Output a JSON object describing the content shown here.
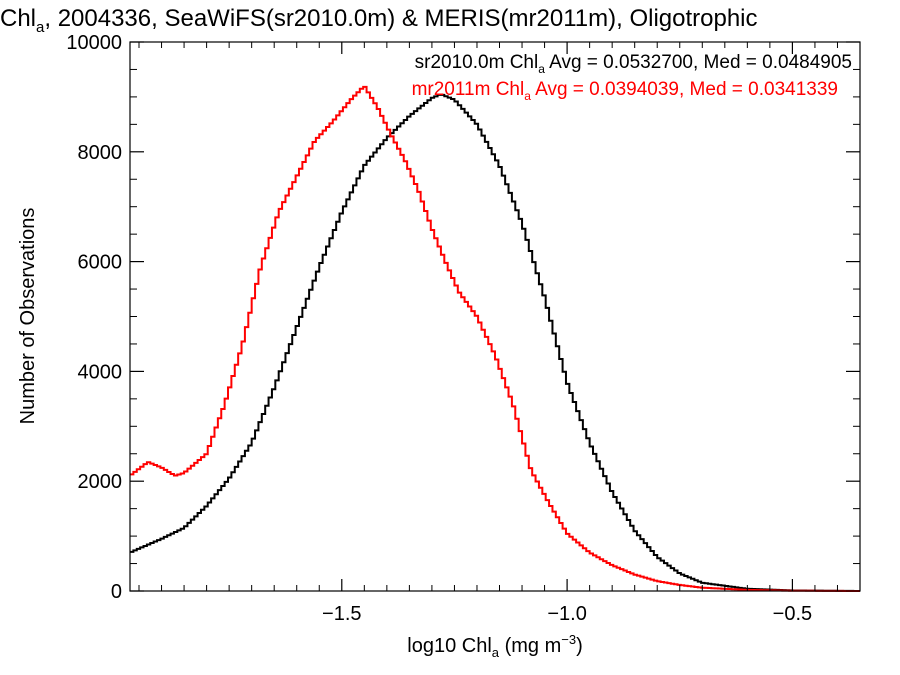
{
  "chart_data": {
    "type": "line",
    "title": {
      "prefix": "Chl",
      "sub": "a",
      "suffix": ", 2004336, SeaWiFS(sr2010.0m) & MERIS(mr2011m), Oligotrophic"
    },
    "xlabel": {
      "prefix": "log10 Chl",
      "sub": "a",
      "middle": " (mg m",
      "sup": "−3",
      "suffix": ")"
    },
    "ylabel": "Number of Observations",
    "xlim": [
      -1.97,
      -0.35
    ],
    "ylim": [
      0,
      10000
    ],
    "x_ticks": [
      -1.5,
      -1.0,
      -0.5
    ],
    "x_tick_labels": [
      "−1.5",
      "−1.0",
      "−0.5"
    ],
    "y_ticks": [
      0,
      2000,
      4000,
      6000,
      8000,
      10000
    ],
    "y_tick_labels": [
      "0",
      "2000",
      "4000",
      "6000",
      "8000",
      "10000"
    ],
    "grid": false,
    "legend_position": "top-right",
    "series": [
      {
        "color": "#000000",
        "legend": {
          "prefix": "sr2010.0m Chl",
          "sub": "a",
          "suffix": " Avg = 0.0532700, Med = 0.0484905"
        },
        "x": [
          -1.97,
          -1.9,
          -1.85,
          -1.8,
          -1.75,
          -1.7,
          -1.65,
          -1.6,
          -1.55,
          -1.5,
          -1.45,
          -1.4,
          -1.35,
          -1.3,
          -1.28,
          -1.25,
          -1.2,
          -1.15,
          -1.1,
          -1.05,
          -1.0,
          -0.95,
          -0.9,
          -0.85,
          -0.8,
          -0.75,
          -0.7,
          -0.6,
          -0.5,
          -0.35
        ],
        "y": [
          700,
          950,
          1150,
          1550,
          2050,
          2700,
          3700,
          4800,
          5900,
          6900,
          7750,
          8250,
          8650,
          8980,
          9050,
          8950,
          8500,
          7750,
          6700,
          5350,
          3800,
          2700,
          1800,
          1100,
          620,
          320,
          150,
          40,
          10,
          0
        ]
      },
      {
        "color": "#ff0000",
        "legend": {
          "prefix": "mr2011m Chl",
          "sub": "a",
          "suffix": " Avg = 0.0394039, Med = 0.0341339"
        },
        "x": [
          -1.97,
          -1.93,
          -1.9,
          -1.87,
          -1.85,
          -1.8,
          -1.76,
          -1.72,
          -1.68,
          -1.64,
          -1.6,
          -1.56,
          -1.52,
          -1.48,
          -1.45,
          -1.42,
          -1.39,
          -1.36,
          -1.33,
          -1.3,
          -1.27,
          -1.24,
          -1.2,
          -1.16,
          -1.12,
          -1.08,
          -1.04,
          -1.0,
          -0.95,
          -0.9,
          -0.85,
          -0.8,
          -0.75,
          -0.7,
          -0.6,
          -0.5,
          -0.35
        ],
        "y": [
          2100,
          2350,
          2250,
          2100,
          2150,
          2500,
          3400,
          4500,
          5900,
          6900,
          7550,
          8200,
          8550,
          8950,
          9200,
          8800,
          8300,
          7850,
          7300,
          6600,
          6000,
          5450,
          5000,
          4300,
          3400,
          2200,
          1600,
          1050,
          700,
          470,
          300,
          180,
          110,
          60,
          20,
          5,
          0
        ]
      }
    ]
  }
}
